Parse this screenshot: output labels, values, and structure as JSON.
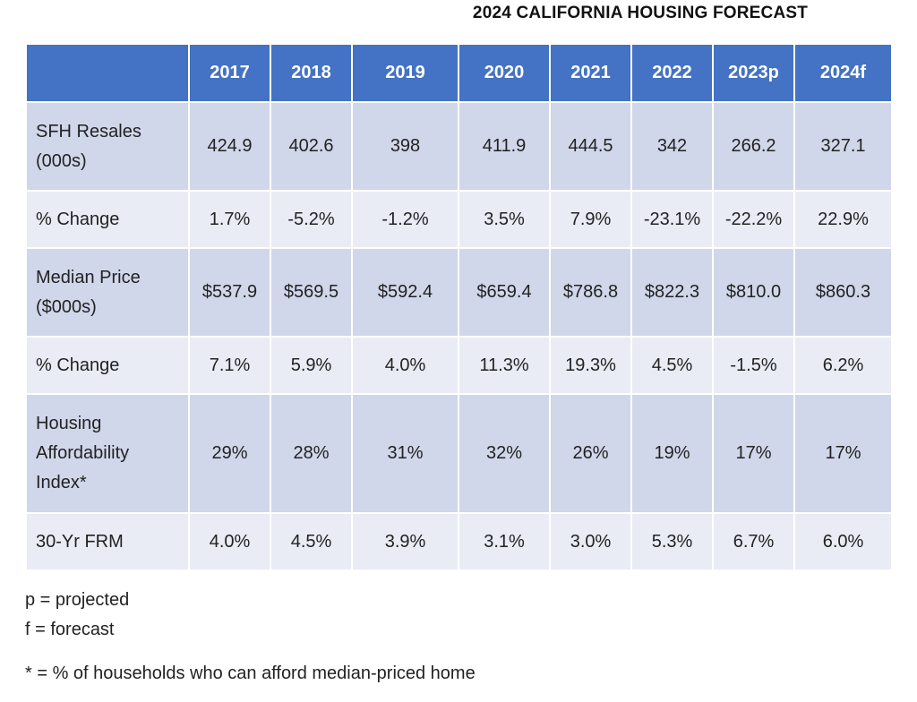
{
  "title": "2024 CALIFORNIA HOUSING FORECAST",
  "table": {
    "columns": [
      "",
      "2017",
      "2018",
      "2019",
      "2020",
      "2021",
      "2022",
      "2023p",
      "2024f"
    ],
    "rows": [
      {
        "label_lines": [
          "SFH Resales",
          "(000s)"
        ],
        "values": [
          "424.9",
          "402.6",
          "398",
          "411.9",
          "444.5",
          "342",
          "266.2",
          "327.1"
        ]
      },
      {
        "label_lines": [
          "% Change"
        ],
        "values": [
          "1.7%",
          "-5.2%",
          "-1.2%",
          "3.5%",
          "7.9%",
          "-23.1%",
          "-22.2%",
          "22.9%"
        ]
      },
      {
        "label_lines": [
          "Median Price",
          "($000s)"
        ],
        "values": [
          "$537.9",
          "$569.5",
          "$592.4",
          "$659.4",
          "$786.8",
          "$822.3",
          "$810.0",
          "$860.3"
        ]
      },
      {
        "label_lines": [
          "% Change"
        ],
        "values": [
          "7.1%",
          "5.9%",
          "4.0%",
          "11.3%",
          "19.3%",
          "4.5%",
          "-1.5%",
          "6.2%"
        ]
      },
      {
        "label_lines": [
          "Housing",
          "Affordability",
          "Index*"
        ],
        "values": [
          "29%",
          "28%",
          "31%",
          "32%",
          "26%",
          "19%",
          "17%",
          "17%"
        ]
      },
      {
        "label_lines": [
          "30-Yr FRM"
        ],
        "values": [
          "4.0%",
          "4.5%",
          "3.9%",
          "3.1%",
          "3.0%",
          "5.3%",
          "6.7%",
          "6.0%"
        ]
      }
    ]
  },
  "notes": {
    "projected": "p = projected",
    "forecast": "f = forecast",
    "asterisk": "* = % of households who can afford median-priced home"
  },
  "colors": {
    "header_bg": "#4472c4",
    "row_dark": "#d0d7ea",
    "row_light": "#e9ecf5"
  }
}
